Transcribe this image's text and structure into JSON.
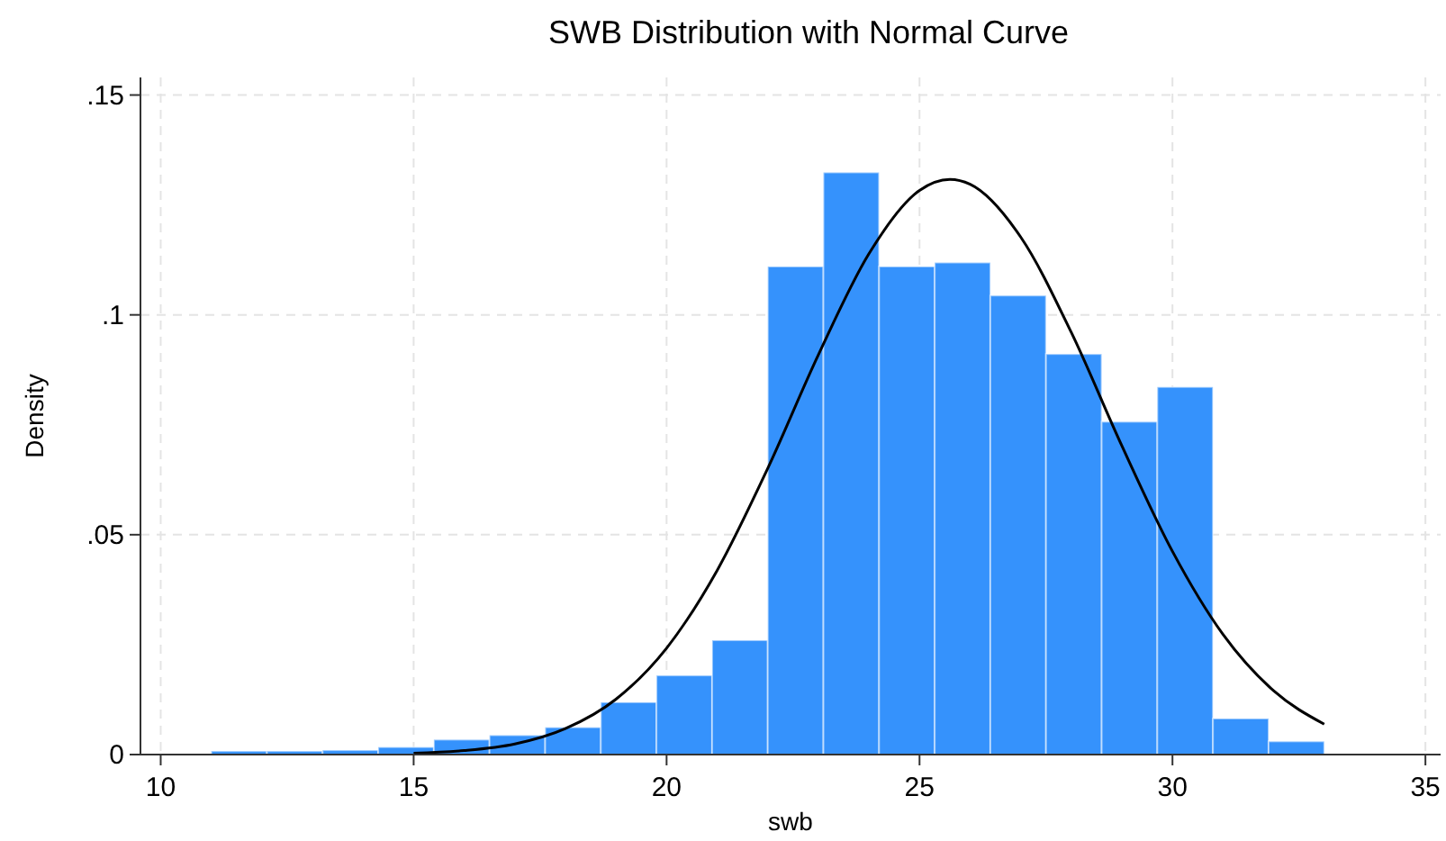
{
  "chart_data": {
    "type": "histogram",
    "title": "SWB Distribution with Normal Curve",
    "xlabel": "swb",
    "ylabel": "Density",
    "bins": [
      11,
      12.1,
      13.2,
      14.3,
      15.4,
      16.5,
      17.6,
      18.7,
      19.8,
      20.9,
      22,
      23.1,
      24.2,
      25.3,
      26.4,
      27.5,
      28.6,
      29.7,
      30.8,
      31.9,
      33
    ],
    "values": [
      0.0008,
      0.0008,
      0.001,
      0.0017,
      0.0034,
      0.0044,
      0.0062,
      0.0119,
      0.018,
      0.026,
      0.111,
      0.1324,
      0.111,
      0.1119,
      0.1044,
      0.0911,
      0.0757,
      0.0836,
      0.0082,
      0.003
    ],
    "color": "#3592fc",
    "series": [
      {
        "type": "line",
        "color": "#000000",
        "x": [
          15,
          16,
          17,
          18,
          19,
          20,
          21,
          22,
          23,
          24,
          25,
          25.6,
          26,
          27,
          28,
          29,
          30,
          31,
          32,
          33
        ],
        "values": [
          0.0003,
          0.0009,
          0.0024,
          0.0059,
          0.0126,
          0.0242,
          0.0419,
          0.0651,
          0.0909,
          0.1139,
          0.1283,
          0.1308,
          0.1297,
          0.1177,
          0.096,
          0.0702,
          0.0462,
          0.0273,
          0.0145,
          0.0069
        ]
      }
    ],
    "xlim": [
      9.6,
      35.3
    ],
    "xticks": [
      10,
      15,
      20,
      25,
      30,
      35
    ],
    "ylim": [
      0,
      0.154
    ],
    "yticks": [
      {
        "value": 0,
        "label": "0"
      },
      {
        "value": 0.05,
        "label": ".05"
      },
      {
        "value": 0.1,
        "label": ".1"
      },
      {
        "value": 0.15,
        "label": ".15"
      }
    ],
    "grid": true
  }
}
